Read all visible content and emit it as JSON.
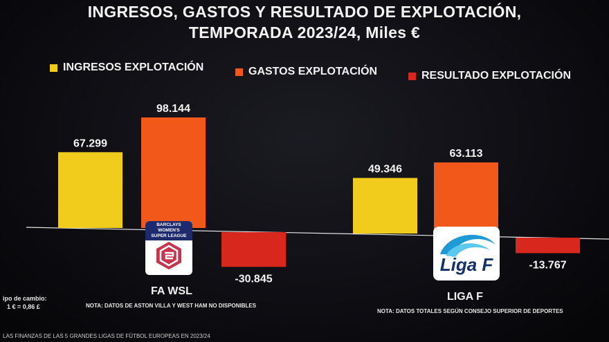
{
  "title_line1": "INGRESOS, GASTOS Y RESULTADO DE EXPLOTACIÓN,",
  "title_line2": "TEMPORADA 2023/24, Miles €",
  "legend": [
    {
      "label": "INGRESOS EXPLOTACIÓN",
      "color": "#f2cc1c"
    },
    {
      "label": "GASTOS EXPLOTACIÓN",
      "color": "#f2581a"
    },
    {
      "label": "RESULTADO EXPLOTACIÓN",
      "color": "#d8281e"
    }
  ],
  "chart_data": {
    "type": "bar",
    "categories": [
      "FA WSL",
      "LIGA F"
    ],
    "series": [
      {
        "name": "INGRESOS EXPLOTACIÓN",
        "values": [
          67299,
          49346
        ],
        "labels": [
          "67.299",
          "49.346"
        ]
      },
      {
        "name": "GASTOS EXPLOTACIÓN",
        "values": [
          98144,
          63113
        ],
        "labels": [
          "98.144",
          "63.113"
        ]
      },
      {
        "name": "RESULTADO EXPLOTACIÓN",
        "values": [
          -30845,
          -13767
        ],
        "labels": [
          "-30.845",
          "-13.767"
        ]
      }
    ],
    "title": "INGRESOS, GASTOS Y RESULTADO DE EXPLOTACIÓN, TEMPORADA 2023/24, Miles €",
    "legend_position": "top",
    "grid": false
  },
  "leagues": {
    "wsl": {
      "name": "FA WSL",
      "note": "NOTA: DATOS DE ASTON VILLA Y WEST HAM NO DISPONIBLES",
      "logo_text": [
        "BARCLAYS",
        "WOMEN'S",
        "SUPER LEAGUE"
      ]
    },
    "ligaf": {
      "name": "LIGA F",
      "note": "NOTA: DATOS TOTALES SEGÚN CONSEJO SUPERIOR DE DEPORTES",
      "logo_text": "Liga F"
    }
  },
  "exchange_note": [
    "ipo de cambio:",
    "1 € = 0,86 £"
  ],
  "footer": "LAS FINANZAS DE LAS 5 GRANDES LIGAS DE FÚTBOL EUROPEAS EN 2023/24"
}
